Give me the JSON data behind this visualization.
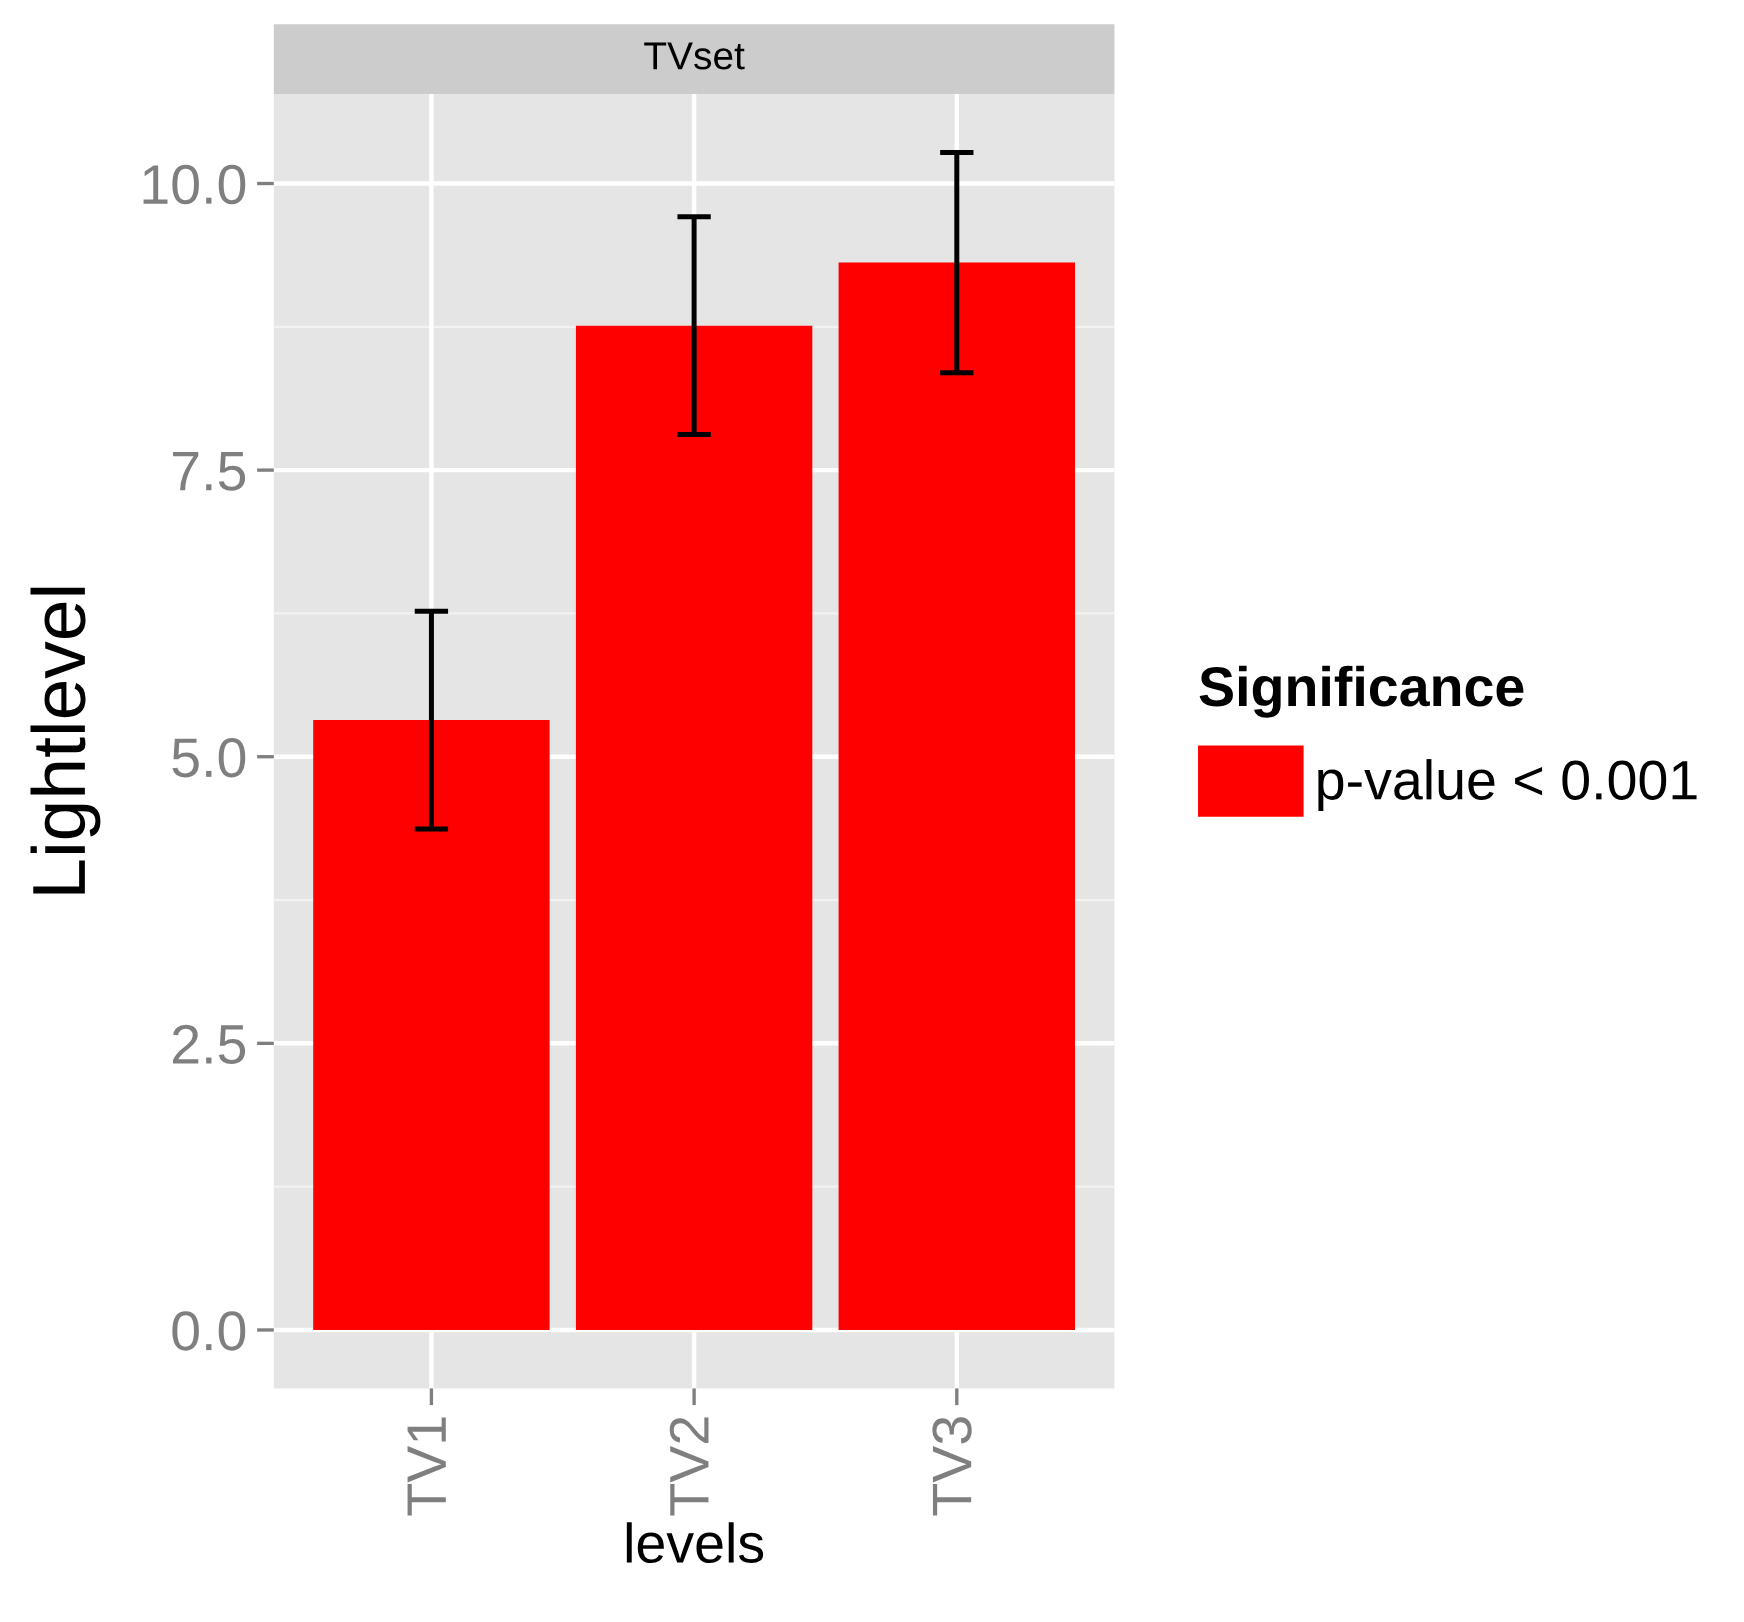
{
  "chart_data": {
    "type": "bar",
    "title": "TVset",
    "xlabel": "levels",
    "ylabel": "Lightlevel",
    "legend_title": "Significance",
    "categories": [
      "TV1",
      "TV2",
      "TV3"
    ],
    "series": [
      {
        "name": "p-value < 0.001",
        "color": "#ff0000",
        "values": [
          5.32,
          8.76,
          9.31
        ],
        "errors": [
          0.95,
          0.95,
          0.96
        ]
      }
    ],
    "ylim": [
      -0.51,
      10.78
    ],
    "yticks": [
      {
        "value": 0,
        "label": "0.0"
      },
      2.5,
      {
        "value": 5,
        "label": "5.0"
      },
      7.5,
      {
        "value": 10,
        "label": "10.0"
      }
    ],
    "grid": true,
    "legend": "right"
  }
}
